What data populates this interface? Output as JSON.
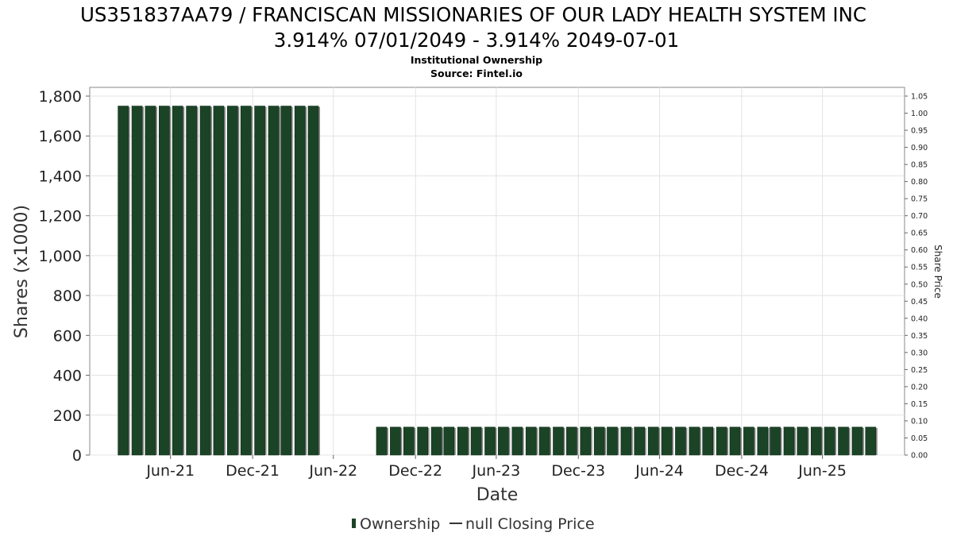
{
  "chart_data": {
    "type": "bar",
    "title_line1": "US351837AA79 / FRANCISCAN MISSIONARIES OF OUR LADY HEALTH SYSTEM INC",
    "title_line2": "3.914% 07/01/2049 - 3.914% 2049-07-01",
    "subtitle_line1": "Institutional Ownership",
    "subtitle_line2": "Source: Fintel.io",
    "xlabel": "Date",
    "ylabel": "Shares (x1000)",
    "y2label": "Share Price",
    "ylim": [
      0,
      1800
    ],
    "y2lim": [
      0,
      1.05
    ],
    "y_ticks": [
      "0",
      "200",
      "400",
      "600",
      "800",
      "1,000",
      "1,200",
      "1,400",
      "1,600",
      "1,800"
    ],
    "y2_ticks": [
      "0.00",
      "0.05",
      "0.10",
      "0.15",
      "0.20",
      "0.25",
      "0.30",
      "0.35",
      "0.40",
      "0.45",
      "0.50",
      "0.55",
      "0.60",
      "0.65",
      "0.70",
      "0.75",
      "0.80",
      "0.85",
      "0.90",
      "0.95",
      "1.00",
      "1.05"
    ],
    "x_ticks": [
      {
        "label": "Jun-21",
        "date": "2021-06-30"
      },
      {
        "label": "Dec-21",
        "date": "2021-12-31"
      },
      {
        "label": "Jun-22",
        "date": "2022-06-30"
      },
      {
        "label": "Dec-22",
        "date": "2022-12-31"
      },
      {
        "label": "Jun-23",
        "date": "2023-06-30"
      },
      {
        "label": "Dec-23",
        "date": "2023-12-31"
      },
      {
        "label": "Jun-24",
        "date": "2024-06-30"
      },
      {
        "label": "Dec-24",
        "date": "2024-12-31"
      },
      {
        "label": "Jun-25",
        "date": "2025-06-30"
      }
    ],
    "grid": true,
    "legend_position": "bottom-center",
    "series": [
      {
        "name": "Ownership",
        "color": "#1b4426",
        "x": [
          "2021-03-16",
          "2021-04-16",
          "2021-05-16",
          "2021-06-16",
          "2021-07-16",
          "2021-08-16",
          "2021-09-16",
          "2021-10-16",
          "2021-11-16",
          "2021-12-16",
          "2022-01-16",
          "2022-02-16",
          "2022-03-16",
          "2022-04-16",
          "2022-05-16",
          "2022-10-16",
          "2022-11-16",
          "2022-12-16",
          "2023-01-16",
          "2023-02-16",
          "2023-03-16",
          "2023-04-16",
          "2023-05-16",
          "2023-06-16",
          "2023-07-16",
          "2023-08-16",
          "2023-09-16",
          "2023-10-16",
          "2023-11-16",
          "2023-12-16",
          "2024-01-16",
          "2024-02-16",
          "2024-03-16",
          "2024-04-16",
          "2024-05-16",
          "2024-06-16",
          "2024-07-16",
          "2024-08-16",
          "2024-09-16",
          "2024-10-16",
          "2024-11-16",
          "2024-12-16",
          "2025-01-16",
          "2025-02-16",
          "2025-03-16",
          "2025-04-16",
          "2025-05-16",
          "2025-06-16",
          "2025-07-16",
          "2025-08-16",
          "2025-09-16",
          "2025-10-16"
        ],
        "values": [
          1750,
          1750,
          1750,
          1750,
          1750,
          1750,
          1750,
          1750,
          1750,
          1750,
          1750,
          1750,
          1750,
          1750,
          1750,
          140,
          140,
          140,
          140,
          140,
          140,
          140,
          140,
          140,
          140,
          140,
          140,
          140,
          140,
          140,
          140,
          140,
          140,
          140,
          140,
          140,
          140,
          140,
          140,
          140,
          140,
          140,
          140,
          140,
          140,
          140,
          140,
          140,
          140,
          140,
          140,
          140
        ]
      },
      {
        "name": "null Closing Price",
        "color": "#333333",
        "x": [],
        "values": []
      }
    ]
  }
}
